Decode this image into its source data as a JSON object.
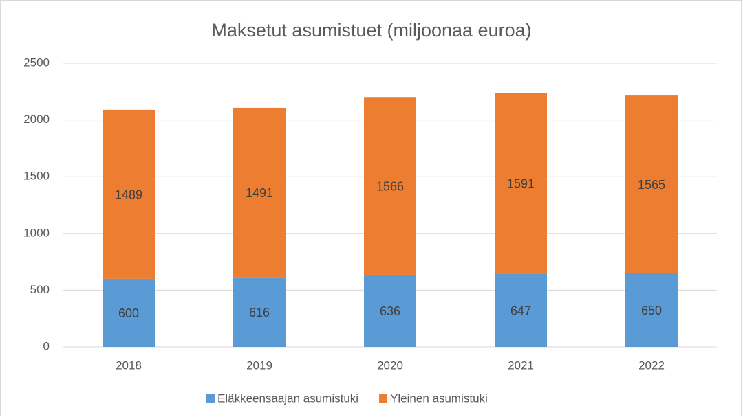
{
  "chart_data": {
    "type": "bar",
    "stacked": true,
    "title": "Maksetut asumistuet (miljoonaa euroa)",
    "categories": [
      "2018",
      "2019",
      "2020",
      "2021",
      "2022"
    ],
    "series": [
      {
        "name": "Eläkkeensaajan asumistuki",
        "color": "#5b9bd5",
        "values": [
          600,
          616,
          636,
          647,
          650
        ]
      },
      {
        "name": "Yleinen asumistuki",
        "color": "#ed7d31",
        "values": [
          1489,
          1491,
          1566,
          1591,
          1565
        ]
      }
    ],
    "ylim": [
      0,
      2500
    ],
    "yticks": [
      0,
      500,
      1000,
      1500,
      2000,
      2500
    ],
    "grid": true,
    "legend": "bottom"
  }
}
